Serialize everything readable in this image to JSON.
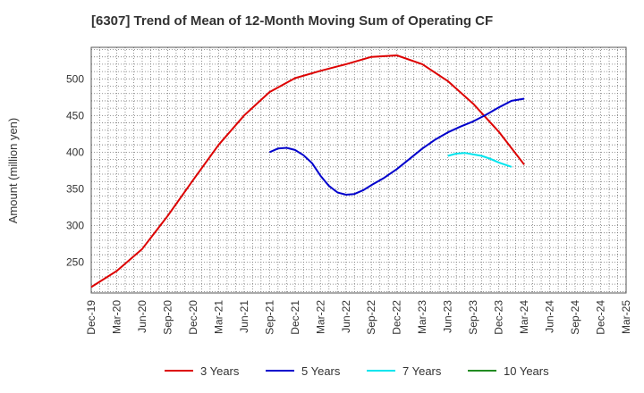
{
  "chart_data": {
    "type": "line",
    "title": "[6307]  Trend of Mean of 12-Month Moving Sum of Operating CF",
    "xlabel": "",
    "ylabel": "Amount (million yen)",
    "ylim": [
      208,
      543
    ],
    "yticks": [
      250,
      300,
      350,
      400,
      450,
      500
    ],
    "grid": true,
    "legend_position": "bottom-center",
    "categories": [
      "Dec-19",
      "Mar-20",
      "Jun-20",
      "Sep-20",
      "Dec-20",
      "Mar-21",
      "Jun-21",
      "Sep-21",
      "Dec-21",
      "Mar-22",
      "Jun-22",
      "Sep-22",
      "Dec-22",
      "Mar-23",
      "Jun-23",
      "Sep-23",
      "Dec-23",
      "Mar-24",
      "Jun-24",
      "Sep-24",
      "Dec-24",
      "Mar-25"
    ],
    "series": [
      {
        "name": "3 Years",
        "color": "#dd0000",
        "points": [
          [
            0,
            216
          ],
          [
            1,
            238
          ],
          [
            2,
            268
          ],
          [
            3,
            313
          ],
          [
            4,
            362
          ],
          [
            5,
            410
          ],
          [
            6,
            450
          ],
          [
            7,
            482
          ],
          [
            8,
            501
          ],
          [
            9,
            511
          ],
          [
            10,
            520
          ],
          [
            11,
            530
          ],
          [
            12,
            532
          ],
          [
            13,
            520
          ],
          [
            14,
            497
          ],
          [
            15,
            466
          ],
          [
            16,
            428
          ],
          [
            17,
            383
          ]
        ]
      },
      {
        "name": "5 Years",
        "color": "#0000cc",
        "points": [
          [
            7,
            400
          ],
          [
            7.33,
            405
          ],
          [
            7.67,
            406
          ],
          [
            8,
            403
          ],
          [
            8.33,
            396
          ],
          [
            8.67,
            385
          ],
          [
            9,
            368
          ],
          [
            9.33,
            354
          ],
          [
            9.67,
            345
          ],
          [
            10,
            342
          ],
          [
            10.33,
            343
          ],
          [
            10.67,
            348
          ],
          [
            11,
            355
          ],
          [
            11.5,
            365
          ],
          [
            12,
            377
          ],
          [
            12.5,
            391
          ],
          [
            13,
            405
          ],
          [
            13.5,
            417
          ],
          [
            14,
            427
          ],
          [
            14.5,
            435
          ],
          [
            15,
            442
          ],
          [
            15.5,
            451
          ],
          [
            16,
            461
          ],
          [
            16.5,
            470
          ],
          [
            17,
            473
          ]
        ]
      },
      {
        "name": "7 Years",
        "color": "#00e5ee",
        "points": [
          [
            14,
            395
          ],
          [
            14.33,
            398
          ],
          [
            14.67,
            399
          ],
          [
            15,
            397
          ],
          [
            15.33,
            395
          ],
          [
            15.67,
            391
          ],
          [
            16,
            386
          ],
          [
            16.33,
            382
          ],
          [
            16.5,
            380
          ]
        ]
      },
      {
        "name": "10 Years",
        "color": "#228B22",
        "points": []
      }
    ]
  }
}
